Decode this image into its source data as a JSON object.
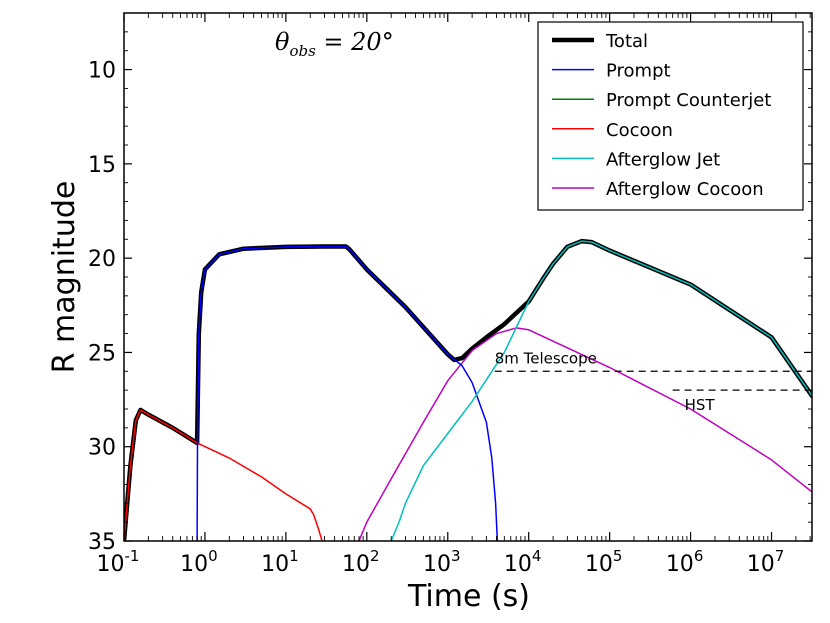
{
  "chart_data": {
    "type": "line",
    "xlabel": "Time (s)",
    "ylabel": "R magnitude",
    "x_scale": "log",
    "xlim": [
      0.1,
      31622776
    ],
    "ylim": [
      35,
      7
    ],
    "y_inverted": true,
    "grid": false,
    "xticks": [
      {
        "base": "10",
        "exp": "-1",
        "value": 0.1
      },
      {
        "base": "10",
        "exp": "0",
        "value": 1
      },
      {
        "base": "10",
        "exp": "1",
        "value": 10
      },
      {
        "base": "10",
        "exp": "2",
        "value": 100
      },
      {
        "base": "10",
        "exp": "3",
        "value": 1000
      },
      {
        "base": "10",
        "exp": "4",
        "value": 10000
      },
      {
        "base": "10",
        "exp": "5",
        "value": 100000
      },
      {
        "base": "10",
        "exp": "6",
        "value": 1000000
      },
      {
        "base": "10",
        "exp": "7",
        "value": 10000000
      }
    ],
    "yticks": [
      {
        "label": "10",
        "value": 10
      },
      {
        "label": "15",
        "value": 15
      },
      {
        "label": "20",
        "value": 20
      },
      {
        "label": "25",
        "value": 25
      },
      {
        "label": "30",
        "value": 30
      },
      {
        "label": "35",
        "value": 35
      }
    ],
    "annotation_theta": {
      "symbol": "θ",
      "sub": "obs",
      "rest": " = 20°"
    },
    "legend_position": "top-right",
    "series": [
      {
        "name": "Total",
        "color": "#000000",
        "width": 4.5,
        "points": [
          [
            0.1,
            35
          ],
          [
            0.12,
            31
          ],
          [
            0.14,
            28.6
          ],
          [
            0.16,
            28.05
          ],
          [
            0.2,
            28.3
          ],
          [
            0.4,
            29
          ],
          [
            0.8,
            29.8
          ],
          [
            0.84,
            24
          ],
          [
            0.9,
            21.8
          ],
          [
            1,
            20.6
          ],
          [
            1.5,
            19.8
          ],
          [
            3,
            19.5
          ],
          [
            10,
            19.4
          ],
          [
            30,
            19.38
          ],
          [
            55,
            19.38
          ],
          [
            60,
            19.5
          ],
          [
            100,
            20.6
          ],
          [
            300,
            22.6
          ],
          [
            1000,
            25.1
          ],
          [
            1200,
            25.4
          ],
          [
            1500,
            25.3
          ],
          [
            2000,
            24.8
          ],
          [
            3000,
            24.2
          ],
          [
            5000,
            23.5
          ],
          [
            10000,
            22.3
          ],
          [
            15000,
            21.1
          ],
          [
            20000,
            20.3
          ],
          [
            30000,
            19.4
          ],
          [
            45000,
            19.1
          ],
          [
            60000,
            19.15
          ],
          [
            100000,
            19.6
          ],
          [
            1000000,
            21.4
          ],
          [
            10000000,
            24.2
          ],
          [
            31622776,
            27.3
          ]
        ]
      },
      {
        "name": "Prompt",
        "color": "#0000ff",
        "width": 1.5,
        "points": [
          [
            0.8,
            35
          ],
          [
            0.81,
            29.5
          ],
          [
            0.84,
            24
          ],
          [
            0.9,
            21.8
          ],
          [
            1,
            20.6
          ],
          [
            1.5,
            19.8
          ],
          [
            3,
            19.5
          ],
          [
            10,
            19.4
          ],
          [
            30,
            19.38
          ],
          [
            55,
            19.38
          ],
          [
            60,
            19.5
          ],
          [
            100,
            20.6
          ],
          [
            300,
            22.6
          ],
          [
            1000,
            25.1
          ],
          [
            1500,
            25.7
          ],
          [
            2000,
            26.6
          ],
          [
            3000,
            28.7
          ],
          [
            3500,
            30.6
          ],
          [
            3900,
            33
          ],
          [
            4100,
            35
          ]
        ]
      },
      {
        "name": "Prompt Counterjet",
        "color": "#008000",
        "width": 1.5,
        "points": []
      },
      {
        "name": "Cocoon",
        "color": "#ff0000",
        "width": 1.5,
        "points": [
          [
            0.1,
            35
          ],
          [
            0.12,
            31
          ],
          [
            0.14,
            28.6
          ],
          [
            0.16,
            28.05
          ],
          [
            0.2,
            28.3
          ],
          [
            0.4,
            29
          ],
          [
            0.8,
            29.8
          ],
          [
            2,
            30.6
          ],
          [
            5,
            31.6
          ],
          [
            10,
            32.5
          ],
          [
            20,
            33.3
          ],
          [
            22,
            33.6
          ],
          [
            25,
            34.3
          ],
          [
            28,
            35
          ]
        ]
      },
      {
        "name": "Afterglow Jet",
        "color": "#00bfbf",
        "width": 1.5,
        "points": [
          [
            200,
            35
          ],
          [
            250,
            34
          ],
          [
            300,
            33
          ],
          [
            500,
            31
          ],
          [
            1000,
            29.3
          ],
          [
            2000,
            27.6
          ],
          [
            5000,
            25
          ],
          [
            10000,
            22.3
          ],
          [
            15000,
            21.1
          ],
          [
            20000,
            20.3
          ],
          [
            30000,
            19.4
          ],
          [
            45000,
            19.1
          ],
          [
            60000,
            19.15
          ],
          [
            100000,
            19.6
          ],
          [
            1000000,
            21.4
          ],
          [
            10000000,
            24.2
          ],
          [
            31622776,
            27.3
          ]
        ]
      },
      {
        "name": "Afterglow Cocoon",
        "color": "#bf00bf",
        "width": 1.5,
        "points": [
          [
            80,
            35
          ],
          [
            100,
            34
          ],
          [
            200,
            31.7
          ],
          [
            500,
            28.7
          ],
          [
            1000,
            26.5
          ],
          [
            2000,
            24.9
          ],
          [
            4000,
            24
          ],
          [
            7000,
            23.7
          ],
          [
            10000,
            23.8
          ],
          [
            100000,
            25.8
          ],
          [
            1000000,
            28
          ],
          [
            10000000,
            30.7
          ],
          [
            31622776,
            32.4
          ]
        ]
      }
    ],
    "limits": [
      {
        "label": "8m Telescope",
        "y": 26,
        "x_start": 3800,
        "x_end": 31622776
      },
      {
        "label": "HST",
        "y": 27,
        "x_start": 600000,
        "x_end": 31622776
      }
    ]
  }
}
